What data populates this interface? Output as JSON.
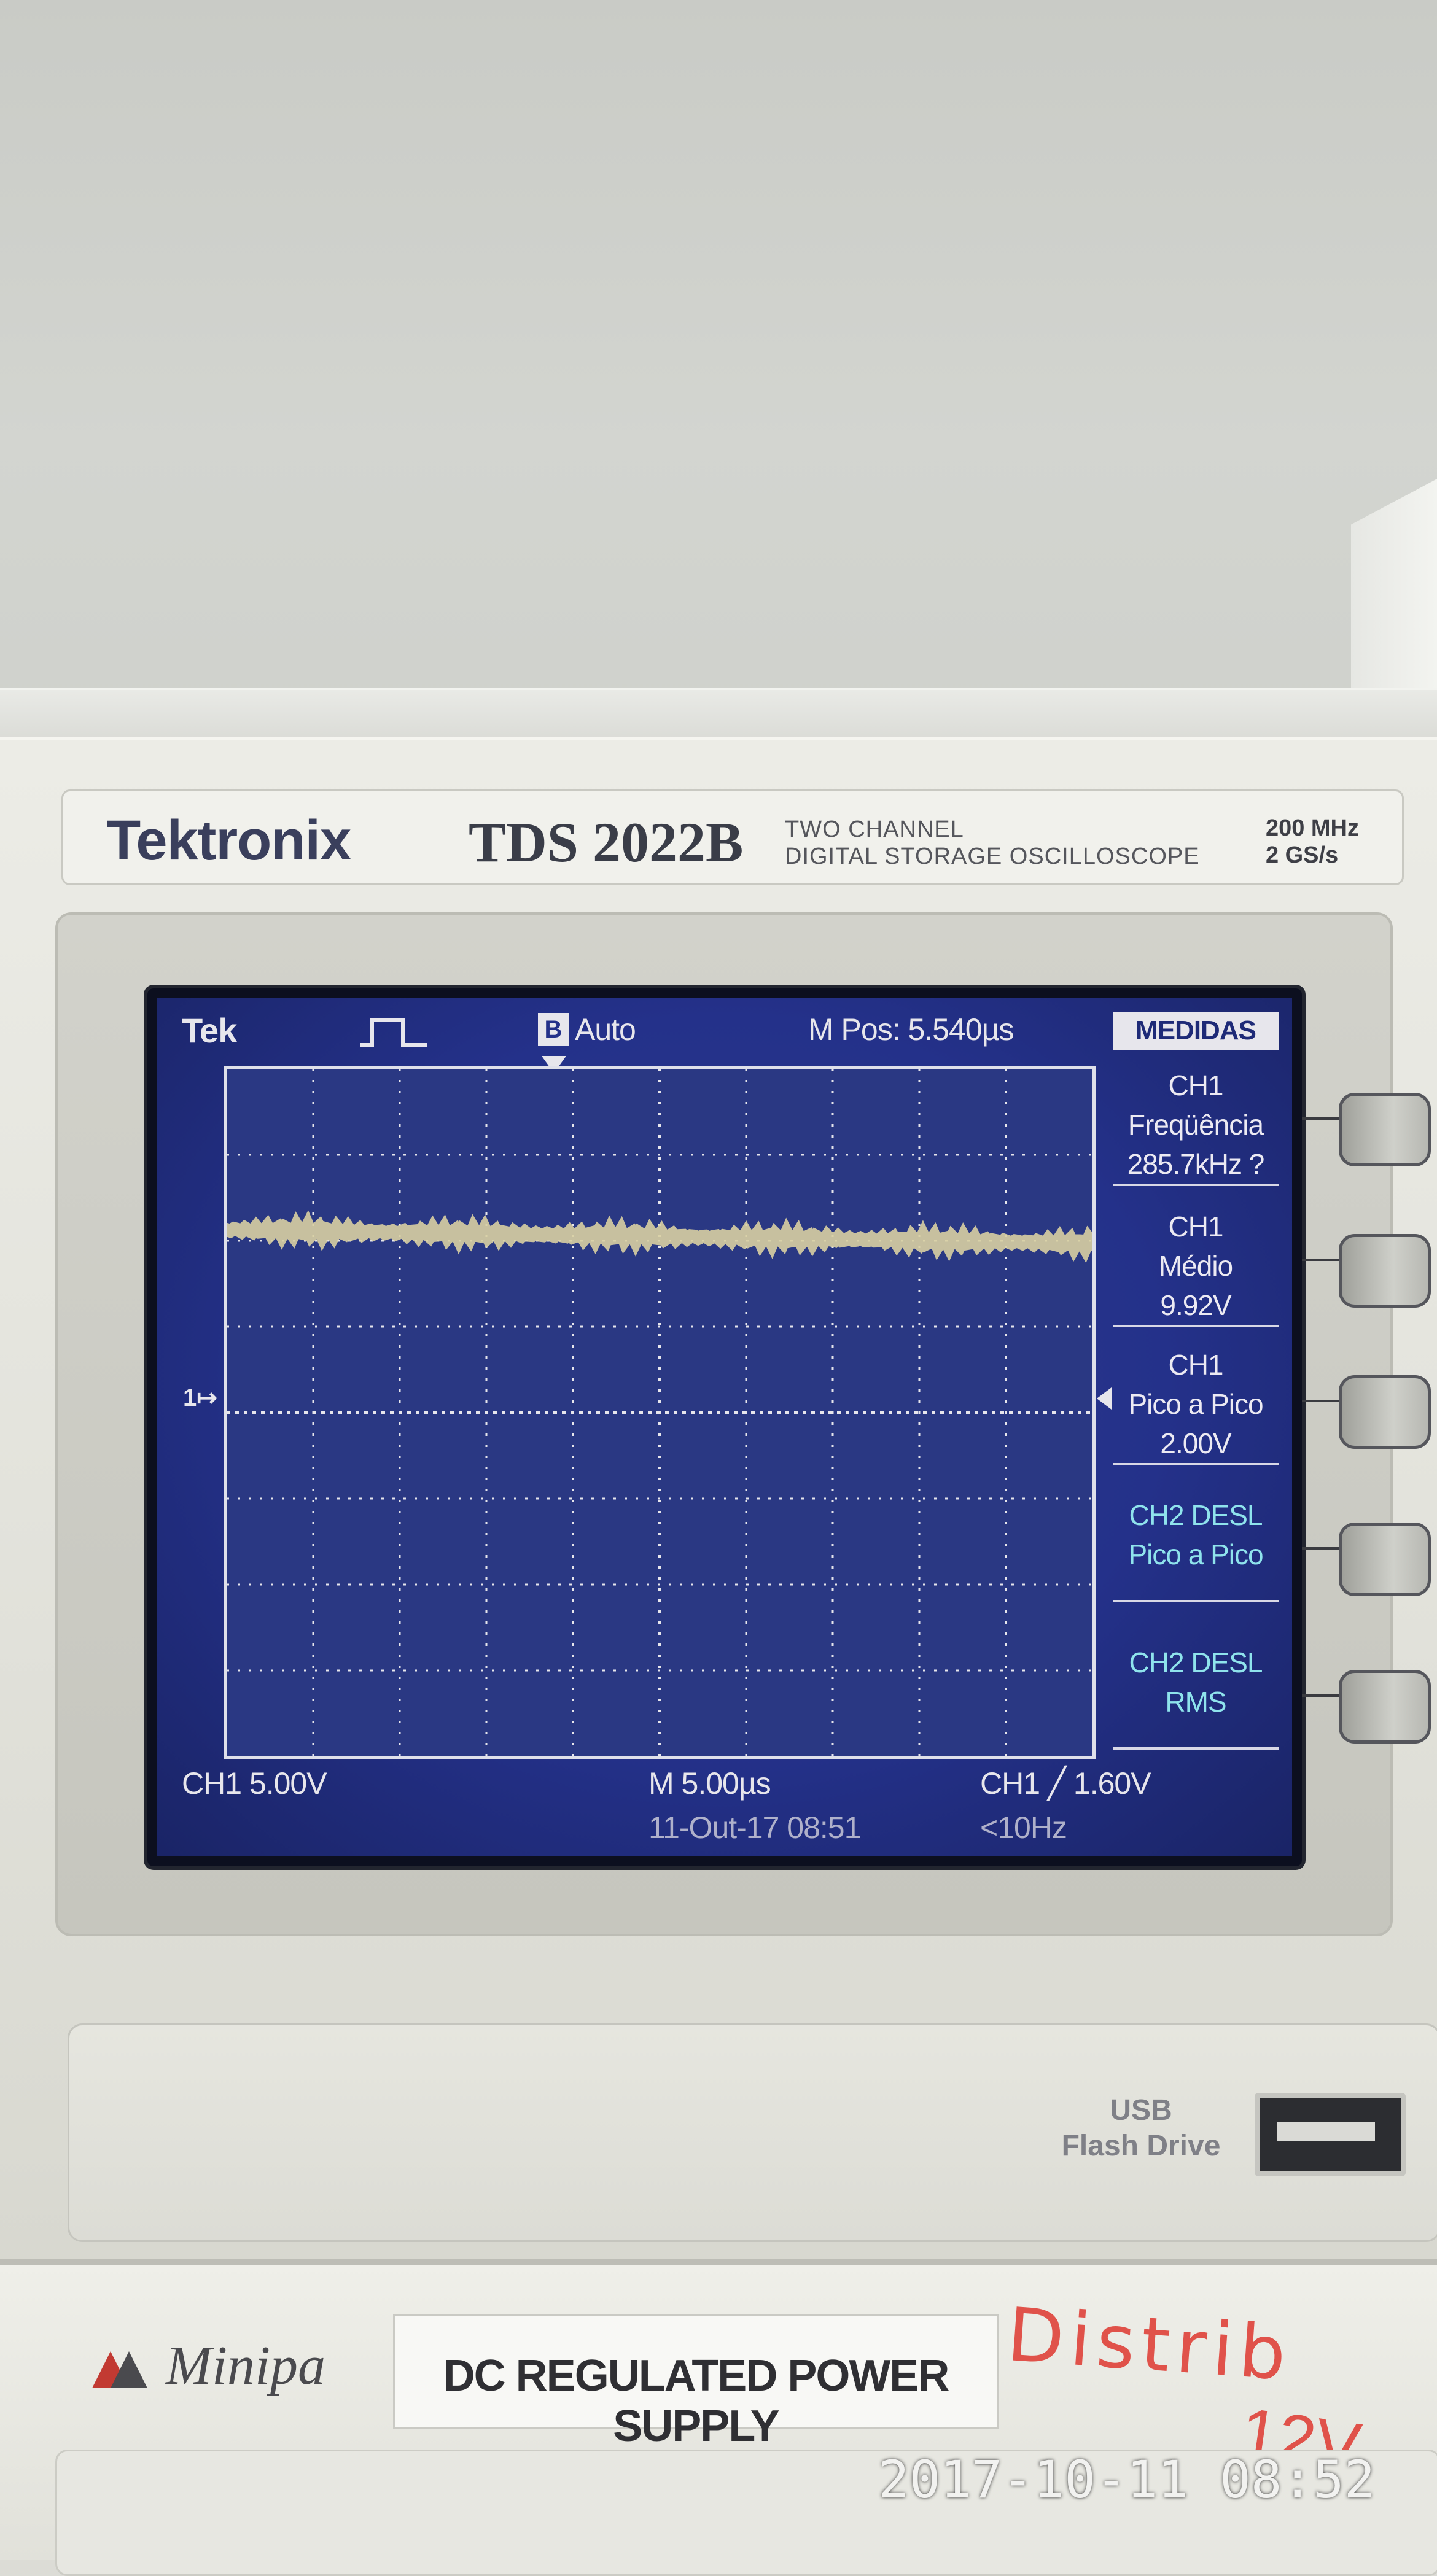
{
  "scope": {
    "brand": "Tektronix",
    "model": "TDS 2022B",
    "description_line1": "TWO  CHANNEL",
    "description_line2": "DIGITAL STORAGE OSCILLOSCOPE",
    "spec_bandwidth": "200 MHz",
    "spec_sample_rate": "2  GS/s"
  },
  "display": {
    "tek_logo": "Tek",
    "trigger_box": "B",
    "trigger_mode": "Auto",
    "m_pos": "M Pos: 5.540µs",
    "ch1_scale": "CH1  5.00V",
    "time_scale": "M 5.00µs",
    "trigger_info": "CH1 ╱ 1.60V",
    "date_time": "11-Out-17 08:51",
    "freq_note": "<10Hz",
    "ch1_marker": "1↦",
    "trace_color": "#d8cfa2",
    "grid_color": "#e7e6ec"
  },
  "menu": {
    "title": "MEDIDAS",
    "items": [
      {
        "line1": "CH1",
        "line2": "Freqüência",
        "line3": "285.7kHz ?"
      },
      {
        "line1": "CH1",
        "line2": "Médio",
        "line3": "9.92V"
      },
      {
        "line1": "CH1",
        "line2": "Pico a Pico",
        "line3": "2.00V"
      },
      {
        "line1": "CH2 DESL",
        "line2": "Pico a Pico",
        "line3": ""
      },
      {
        "line1": "CH2 DESL",
        "line2": "RMS",
        "line3": ""
      }
    ]
  },
  "usb": {
    "label_line1": "USB",
    "label_line2": "Flash Drive"
  },
  "psu": {
    "brand": "Minipa",
    "label": "DC REGULATED POWER SUPPLY",
    "handwritten": "Distrib",
    "handwritten2": "12V"
  },
  "photo_timestamp": "2017-10-11  08:52"
}
